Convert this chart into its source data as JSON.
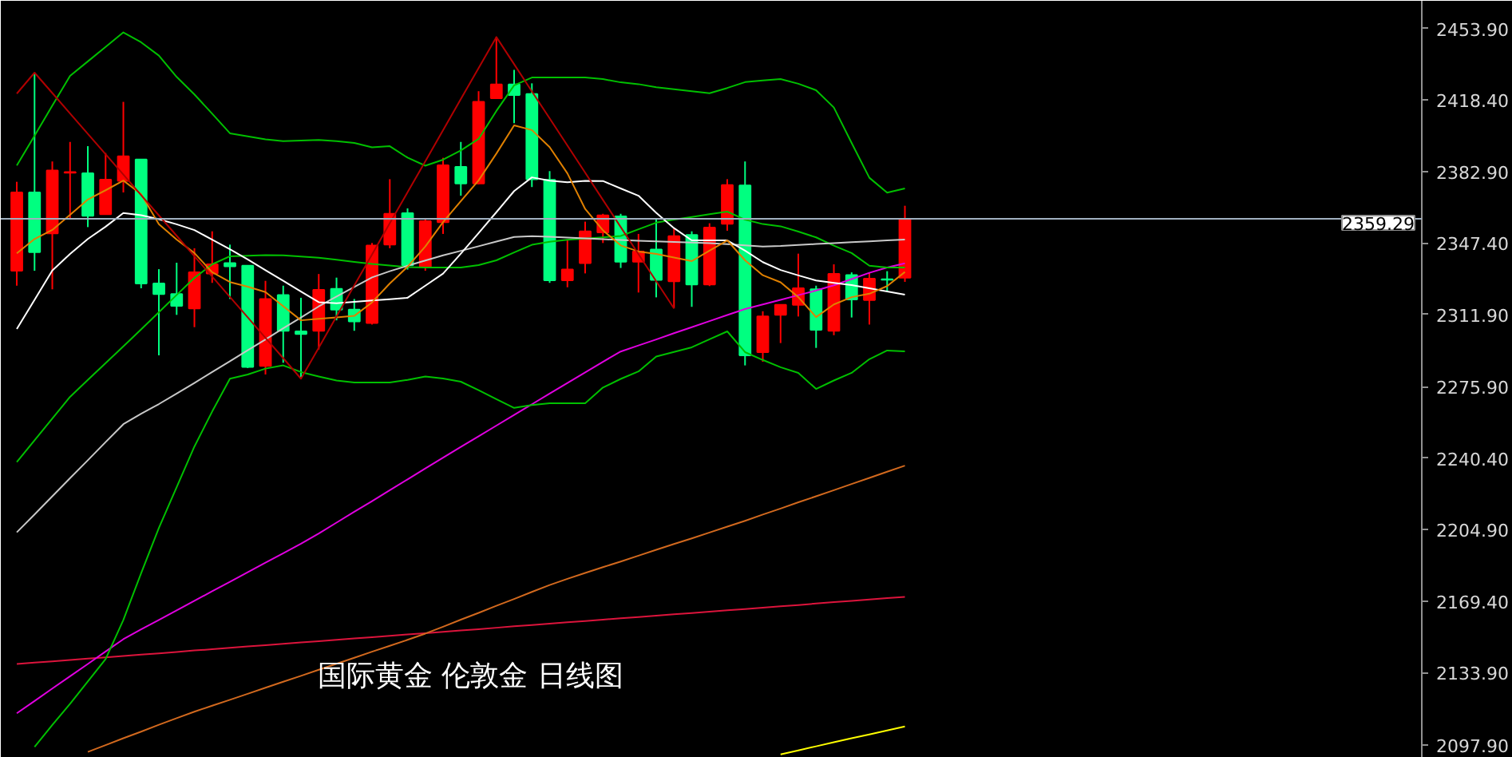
{
  "chart_data": {
    "type": "candlestick",
    "title": "国际黄金 伦敦金 日线图",
    "categories": [
      null,
      null,
      null,
      null,
      null,
      null,
      null,
      null,
      null,
      null,
      null,
      null,
      null,
      null,
      null,
      null,
      null,
      null,
      null,
      null,
      null,
      null,
      null,
      null,
      null,
      null,
      null,
      null,
      null,
      null,
      null,
      null,
      null,
      null,
      null,
      null,
      null,
      null,
      null,
      null,
      null,
      null,
      null,
      null,
      null,
      null,
      null,
      null,
      null,
      null,
      null
    ],
    "ohlc": [
      [
        2333.5,
        2377.7,
        2326.1,
        2372.4
      ],
      [
        2372.4,
        2431.9,
        2333.5,
        2342.8
      ],
      [
        2352.1,
        2387.8,
        2324.3,
        2383.3
      ],
      [
        2382.2,
        2397.5,
        2359.2,
        2382.5
      ],
      [
        2381.9,
        2395.4,
        2355.2,
        2360.8
      ],
      [
        2361.6,
        2392.0,
        2361.6,
        2378.8
      ],
      [
        2378.2,
        2417.4,
        2372.4,
        2390.4
      ],
      [
        2388.8,
        2388.8,
        2324.8,
        2327.2
      ],
      [
        2327.2,
        2334.3,
        2291.5,
        2321.9
      ],
      [
        2321.9,
        2337.5,
        2311.6,
        2316.1
      ],
      [
        2314.8,
        2344.7,
        2305.5,
        2332.7
      ],
      [
        2332.2,
        2353.1,
        2327.5,
        2336.7
      ],
      [
        2337.3,
        2346.5,
        2319.5,
        2335.7
      ],
      [
        2336.0,
        2336.0,
        2285.2,
        2285.7
      ],
      [
        2286.2,
        2328.5,
        2282.0,
        2319.5
      ],
      [
        2321.4,
        2326.1,
        2287.8,
        2303.7
      ],
      [
        2303.4,
        2320.1,
        2279.9,
        2302.1
      ],
      [
        2303.7,
        2331.9,
        2294.4,
        2324.0
      ],
      [
        2324.5,
        2330.1,
        2308.9,
        2314.2
      ],
      [
        2314.2,
        2319.5,
        2303.7,
        2308.4
      ],
      [
        2307.6,
        2347.3,
        2306.8,
        2346.0
      ],
      [
        2346.5,
        2379.0,
        2344.7,
        2361.8
      ],
      [
        2362.1,
        2364.5,
        2334.1,
        2336.2
      ],
      [
        2335.4,
        2359.7,
        2333.5,
        2358.1
      ],
      [
        2357.6,
        2389.6,
        2351.8,
        2385.9
      ],
      [
        2385.1,
        2397.5,
        2370.8,
        2376.9
      ],
      [
        2376.9,
        2422.7,
        2376.4,
        2417.4
      ],
      [
        2419.2,
        2449.6,
        2419.2,
        2426.1
      ],
      [
        2426.1,
        2433.3,
        2406.8,
        2420.8
      ],
      [
        2421.3,
        2426.6,
        2375.1,
        2379.0
      ],
      [
        2378.7,
        2383.0,
        2327.5,
        2328.8
      ],
      [
        2328.8,
        2348.6,
        2325.3,
        2334.1
      ],
      [
        2337.3,
        2357.9,
        2332.2,
        2353.1
      ],
      [
        2352.6,
        2361.8,
        2347.3,
        2361.0
      ],
      [
        2360.5,
        2361.8,
        2334.9,
        2338.0
      ],
      [
        2338.0,
        2351.8,
        2322.7,
        2343.1
      ],
      [
        2344.1,
        2359.7,
        2320.3,
        2329.0
      ],
      [
        2328.3,
        2354.4,
        2314.8,
        2350.7
      ],
      [
        2351.3,
        2353.1,
        2315.6,
        2326.7
      ],
      [
        2326.7,
        2357.1,
        2325.9,
        2355.0
      ],
      [
        2356.8,
        2379.0,
        2353.4,
        2376.1
      ],
      [
        2375.9,
        2387.8,
        2286.5,
        2291.5
      ],
      [
        2293.1,
        2313.4,
        2288.3,
        2310.8
      ],
      [
        2311.6,
        2316.6,
        2297.6,
        2316.6
      ],
      [
        2316.6,
        2342.0,
        2310.8,
        2324.8
      ],
      [
        2324.3,
        2326.1,
        2295.2,
        2304.2
      ],
      [
        2303.7,
        2336.7,
        2301.5,
        2332.0
      ],
      [
        2331.4,
        2332.7,
        2310.3,
        2319.3
      ],
      [
        2319.0,
        2332.7,
        2306.8,
        2329.6
      ],
      [
        2329.3,
        2333.3,
        2323.5,
        2329.1
      ],
      [
        2330.1,
        2365.8,
        2328.0,
        2359.29
      ]
    ],
    "colors": [
      "#ff0000",
      "#00ff80",
      "#ff0000",
      "#ff0000",
      "#00ff80",
      "#ff0000",
      "#ff0000",
      "#00ff80",
      "#00ff80",
      "#00ff80",
      "#ff0000",
      "#ff0000",
      "#00ff80",
      "#00ff80",
      "#ff0000",
      "#00ff80",
      "#00ff80",
      "#ff0000",
      "#00ff80",
      "#00ff80",
      "#ff0000",
      "#ff0000",
      "#00ff80",
      "#ff0000",
      "#ff0000",
      "#00ff80",
      "#ff0000",
      "#ff0000",
      "#00ff80",
      "#00ff80",
      "#00ff80",
      "#ff0000",
      "#ff0000",
      "#ff0000",
      "#00ff80",
      "#ff0000",
      "#00ff80",
      "#ff0000",
      "#00ff80",
      "#ff0000",
      "#ff0000",
      "#00ff80",
      "#ff0000",
      "#ff0000",
      "#ff0000",
      "#00ff80",
      "#ff0000",
      "#00ff80",
      "#ff0000",
      "#00ff80",
      "#ff0000"
    ],
    "series": [
      {
        "type": "line",
        "color": "#dc143c",
        "values": [
          2138.2,
          2138.9,
          2139.5,
          2140.2,
          2140.9,
          2141.5,
          2142.2,
          2142.9,
          2143.5,
          2144.2,
          2144.9,
          2145.5,
          2146.2,
          2146.9,
          2147.5,
          2148.2,
          2148.9,
          2149.5,
          2150.2,
          2150.9,
          2151.5,
          2152.2,
          2152.9,
          2153.5,
          2154.2,
          2154.9,
          2155.5,
          2156.2,
          2156.9,
          2157.5,
          2158.2,
          2158.9,
          2159.5,
          2160.2,
          2160.9,
          2161.5,
          2162.2,
          2162.9,
          2163.5,
          2164.2,
          2164.9,
          2165.5,
          2166.2,
          2166.9,
          2167.5,
          2168.2,
          2168.9,
          2169.5,
          2170.2,
          2170.9,
          2171.5
        ]
      },
      {
        "type": "line",
        "color": "#ffff00",
        "values": [
          null,
          null,
          null,
          null,
          null,
          null,
          null,
          null,
          null,
          null,
          null,
          null,
          null,
          null,
          null,
          null,
          null,
          null,
          null,
          null,
          null,
          null,
          null,
          null,
          null,
          null,
          null,
          null,
          null,
          null,
          null,
          null,
          null,
          null,
          null,
          null,
          null,
          null,
          null,
          null,
          null,
          null,
          null,
          2093.3,
          2095.3,
          2097.3,
          2099.3,
          2101.3,
          2103.2,
          2105.2,
          2107.2
        ]
      },
      {
        "type": "line",
        "color": "#d2691e",
        "values": [
          null,
          null,
          null,
          null,
          2094.5,
          2097.9,
          2101.3,
          2104.6,
          2108.0,
          2111.3,
          2114.5,
          2117.5,
          2120.4,
          2123.4,
          2126.4,
          2129.4,
          2132.3,
          2135.3,
          2138.3,
          2141.3,
          2144.3,
          2147.2,
          2150.2,
          2153.3,
          2156.7,
          2160.2,
          2163.6,
          2167.1,
          2170.5,
          2174.0,
          2177.4,
          2180.5,
          2183.4,
          2186.3,
          2189.1,
          2192.0,
          2194.9,
          2197.8,
          2200.6,
          2203.5,
          2206.4,
          2209.3,
          2212.4,
          2215.4,
          2218.5,
          2221.5,
          2224.5,
          2227.6,
          2230.6,
          2233.7,
          2236.7
        ]
      },
      {
        "type": "line",
        "color": "#e000e0",
        "values": [
          2113.7,
          2119.8,
          2126.0,
          2132.1,
          2138.2,
          2144.4,
          2150.5,
          2155.4,
          2160.1,
          2164.8,
          2169.6,
          2174.3,
          2179.0,
          2183.8,
          2188.5,
          2193.2,
          2197.9,
          2203.0,
          2208.4,
          2213.8,
          2219.1,
          2224.5,
          2229.9,
          2235.3,
          2240.7,
          2246.0,
          2251.3,
          2256.6,
          2261.9,
          2267.2,
          2272.5,
          2277.8,
          2283.0,
          2288.3,
          2293.4,
          2296.4,
          2299.4,
          2302.5,
          2305.5,
          2308.5,
          2311.5,
          2314.5,
          2316.8,
          2319.1,
          2321.4,
          2323.7,
          2326.3,
          2329.4,
          2332.5,
          2335.1,
          2337.2
        ]
      },
      {
        "type": "line",
        "color": "#00c000",
        "values": [
          2385.8,
          2400.6,
          2415.5,
          2430.3,
          2437.5,
          2444.7,
          2451.9,
          2447.0,
          2440.4,
          2429.8,
          2421.1,
          2411.5,
          2401.8,
          2400.3,
          2398.8,
          2397.9,
          2398.2,
          2398.5,
          2397.9,
          2397.0,
          2394.8,
          2395.4,
          2389.7,
          2385.7,
          2388.7,
          2393.3,
          2399.0,
          2412.9,
          2425.6,
          2429.5,
          2429.5,
          2429.5,
          2429.5,
          2428.7,
          2427.1,
          2426.2,
          2424.7,
          2423.7,
          2422.7,
          2421.7,
          2424.3,
          2427.2,
          2428.0,
          2428.7,
          2426.4,
          2423.2,
          2414.6,
          2397.0,
          2379.7,
          2372.3,
          2374.4
        ]
      },
      {
        "type": "line",
        "color": "#00c000",
        "values": [
          null,
          2097.0,
          2107.9,
          2118.4,
          2129.5,
          2140.6,
          2160.1,
          2183.3,
          2205.8,
          2226.0,
          2246.2,
          2263.6,
          2279.9,
          2282.0,
          2284.9,
          2286.5,
          2283.2,
          2281.0,
          2279.0,
          2278.0,
          2278.0,
          2278.0,
          2279.3,
          2281.0,
          2280.0,
          2278.4,
          2274.2,
          2269.7,
          2265.4,
          2266.8,
          2267.7,
          2267.7,
          2267.7,
          2275.5,
          2279.8,
          2283.5,
          2290.9,
          2293.2,
          2295.5,
          2299.5,
          2303.4,
          2293.1,
          2289.2,
          2285.6,
          2282.8,
          2274.8,
          2279.0,
          2282.8,
          2289.6,
          2293.9,
          2293.5
        ]
      },
      {
        "type": "line",
        "color": "#00c000",
        "values": [
          2238.5,
          2249.3,
          2260.1,
          2270.9,
          2279.3,
          2287.6,
          2296.0,
          2304.4,
          2312.9,
          2321.5,
          2330.0,
          2336.7,
          2340.7,
          2341.0,
          2341.3,
          2341.2,
          2340.6,
          2340.0,
          2339.0,
          2337.9,
          2336.9,
          2336.1,
          2335.3,
          2335.1,
          2335.1,
          2335.1,
          2336.3,
          2338.7,
          2342.6,
          2346.4,
          2347.9,
          2348.9,
          2349.5,
          2350.1,
          2350.8,
          2354.1,
          2357.4,
          2358.9,
          2360.2,
          2361.6,
          2362.9,
          2358.9,
          2356.7,
          2355.6,
          2353.0,
          2350.1,
          2346.0,
          2342.3,
          2336.0,
          2335.1,
          2335.1
        ]
      },
      {
        "type": "line",
        "color": "#c8c8c8",
        "values": [
          2203.6,
          2212.5,
          2221.5,
          2230.5,
          2239.4,
          2248.4,
          2257.3,
          2262.5,
          2267.3,
          2272.5,
          2277.8,
          2283.2,
          2288.6,
          2294.0,
          2299.4,
          2304.9,
          2310.3,
          2315.8,
          2320.7,
          2325.5,
          2330.2,
          2333.3,
          2336.0,
          2338.6,
          2341.2,
          2343.4,
          2345.7,
          2348.0,
          2350.3,
          2350.7,
          2350.4,
          2350.0,
          2349.6,
          2349.2,
          2348.8,
          2348.4,
          2348.1,
          2347.8,
          2347.5,
          2347.2,
          2346.7,
          2346.1,
          2345.5,
          2345.8,
          2346.3,
          2346.8,
          2347.2,
          2347.7,
          2348.1,
          2348.6,
          2349.0
        ]
      },
      {
        "type": "line",
        "color": "#ffffff",
        "values": [
          2304.6,
          2319.1,
          2333.6,
          2341.9,
          2349.3,
          2355.4,
          2362.2,
          2361.1,
          2359.1,
          2356.6,
          2353.7,
          2349.0,
          2344.2,
          2339.1,
          2333.8,
          2328.5,
          2323.2,
          2317.9,
          2317.4,
          2318.1,
          2318.8,
          2319.4,
          2320.1,
          2326.1,
          2332.1,
          2342.0,
          2352.2,
          2362.6,
          2373.1,
          2379.9,
          2378.3,
          2377.5,
          2378.2,
          2378.1,
          2374.4,
          2370.8,
          2362.3,
          2354.7,
          2348.6,
          2348.6,
          2348.6,
          2343.5,
          2337.8,
          2333.9,
          2331.2,
          2328.7,
          2327.5,
          2326.4,
          2324.8,
          2323.2,
          2321.6
        ]
      },
      {
        "type": "line",
        "color": "#e08000",
        "values": [
          2342.2,
          2349.3,
          2353.8,
          2361.3,
          2368.9,
          2373.5,
          2378.3,
          2371.6,
          2356.6,
          2349.0,
          2342.3,
          2332.8,
          2327.9,
          2325.6,
          2322.9,
          2315.9,
          2308.9,
          2309.6,
          2310.3,
          2311.1,
          2317.8,
          2327.2,
          2335.5,
          2345.6,
          2357.7,
          2368.1,
          2378.4,
          2391.7,
          2405.7,
          2403.4,
          2394.9,
          2381.9,
          2364.2,
          2353.6,
          2346.1,
          2343.1,
          2341.9,
          2340.1,
          2338.3,
          2343.5,
          2348.6,
          2338.7,
          2331.3,
          2327.8,
          2320.4,
          2310.5,
          2316.8,
          2320.4,
          2322.1,
          2325.9,
          2332.9
        ]
      },
      {
        "type": "line",
        "color": "#b00000",
        "values": [
          2421.5,
          2431.9,
          2421.8,
          2411.6,
          2401.5,
          2391.4,
          2381.3,
          2371.1,
          2361.0,
          2350.9,
          2340.7,
          2330.6,
          2320.5,
          2310.4,
          2300.2,
          2290.1,
          2279.9,
          2295.3,
          2310.8,
          2326.2,
          2341.6,
          2357.1,
          2372.5,
          2387.9,
          2403.3,
          2418.8,
          2434.2,
          2449.6,
          2436.1,
          2422.6,
          2409.2,
          2395.7,
          2382.2,
          2368.7,
          2355.2,
          2341.8,
          2328.3,
          2314.8,
          null,
          null,
          null,
          null,
          null,
          null,
          null,
          null,
          null,
          null,
          null,
          null,
          null
        ]
      }
    ],
    "ref_lines": [
      {
        "axis": "y",
        "value": 2359.29,
        "label": "2359.29",
        "color": "#a0b0c0"
      }
    ],
    "ylim": [
      2091.6,
      2467.6
    ],
    "yticks": [
      {
        "value": 2453.9,
        "label": "2453.90"
      },
      {
        "value": 2418.4,
        "label": "2418.40"
      },
      {
        "value": 2382.9,
        "label": "2382.90"
      },
      {
        "value": 2347.4,
        "label": "2347.40"
      },
      {
        "value": 2311.9,
        "label": "2311.90"
      },
      {
        "value": 2275.9,
        "label": "2275.90"
      },
      {
        "value": 2240.4,
        "label": "2240.40"
      },
      {
        "value": 2204.9,
        "label": "2204.90"
      },
      {
        "value": 2169.4,
        "label": "2169.40"
      },
      {
        "value": 2133.9,
        "label": "2133.90"
      },
      {
        "value": 2097.9,
        "label": "2097.90"
      }
    ],
    "tick_labels": "y",
    "grid": false,
    "marker": "none",
    "line_style": "solid"
  }
}
